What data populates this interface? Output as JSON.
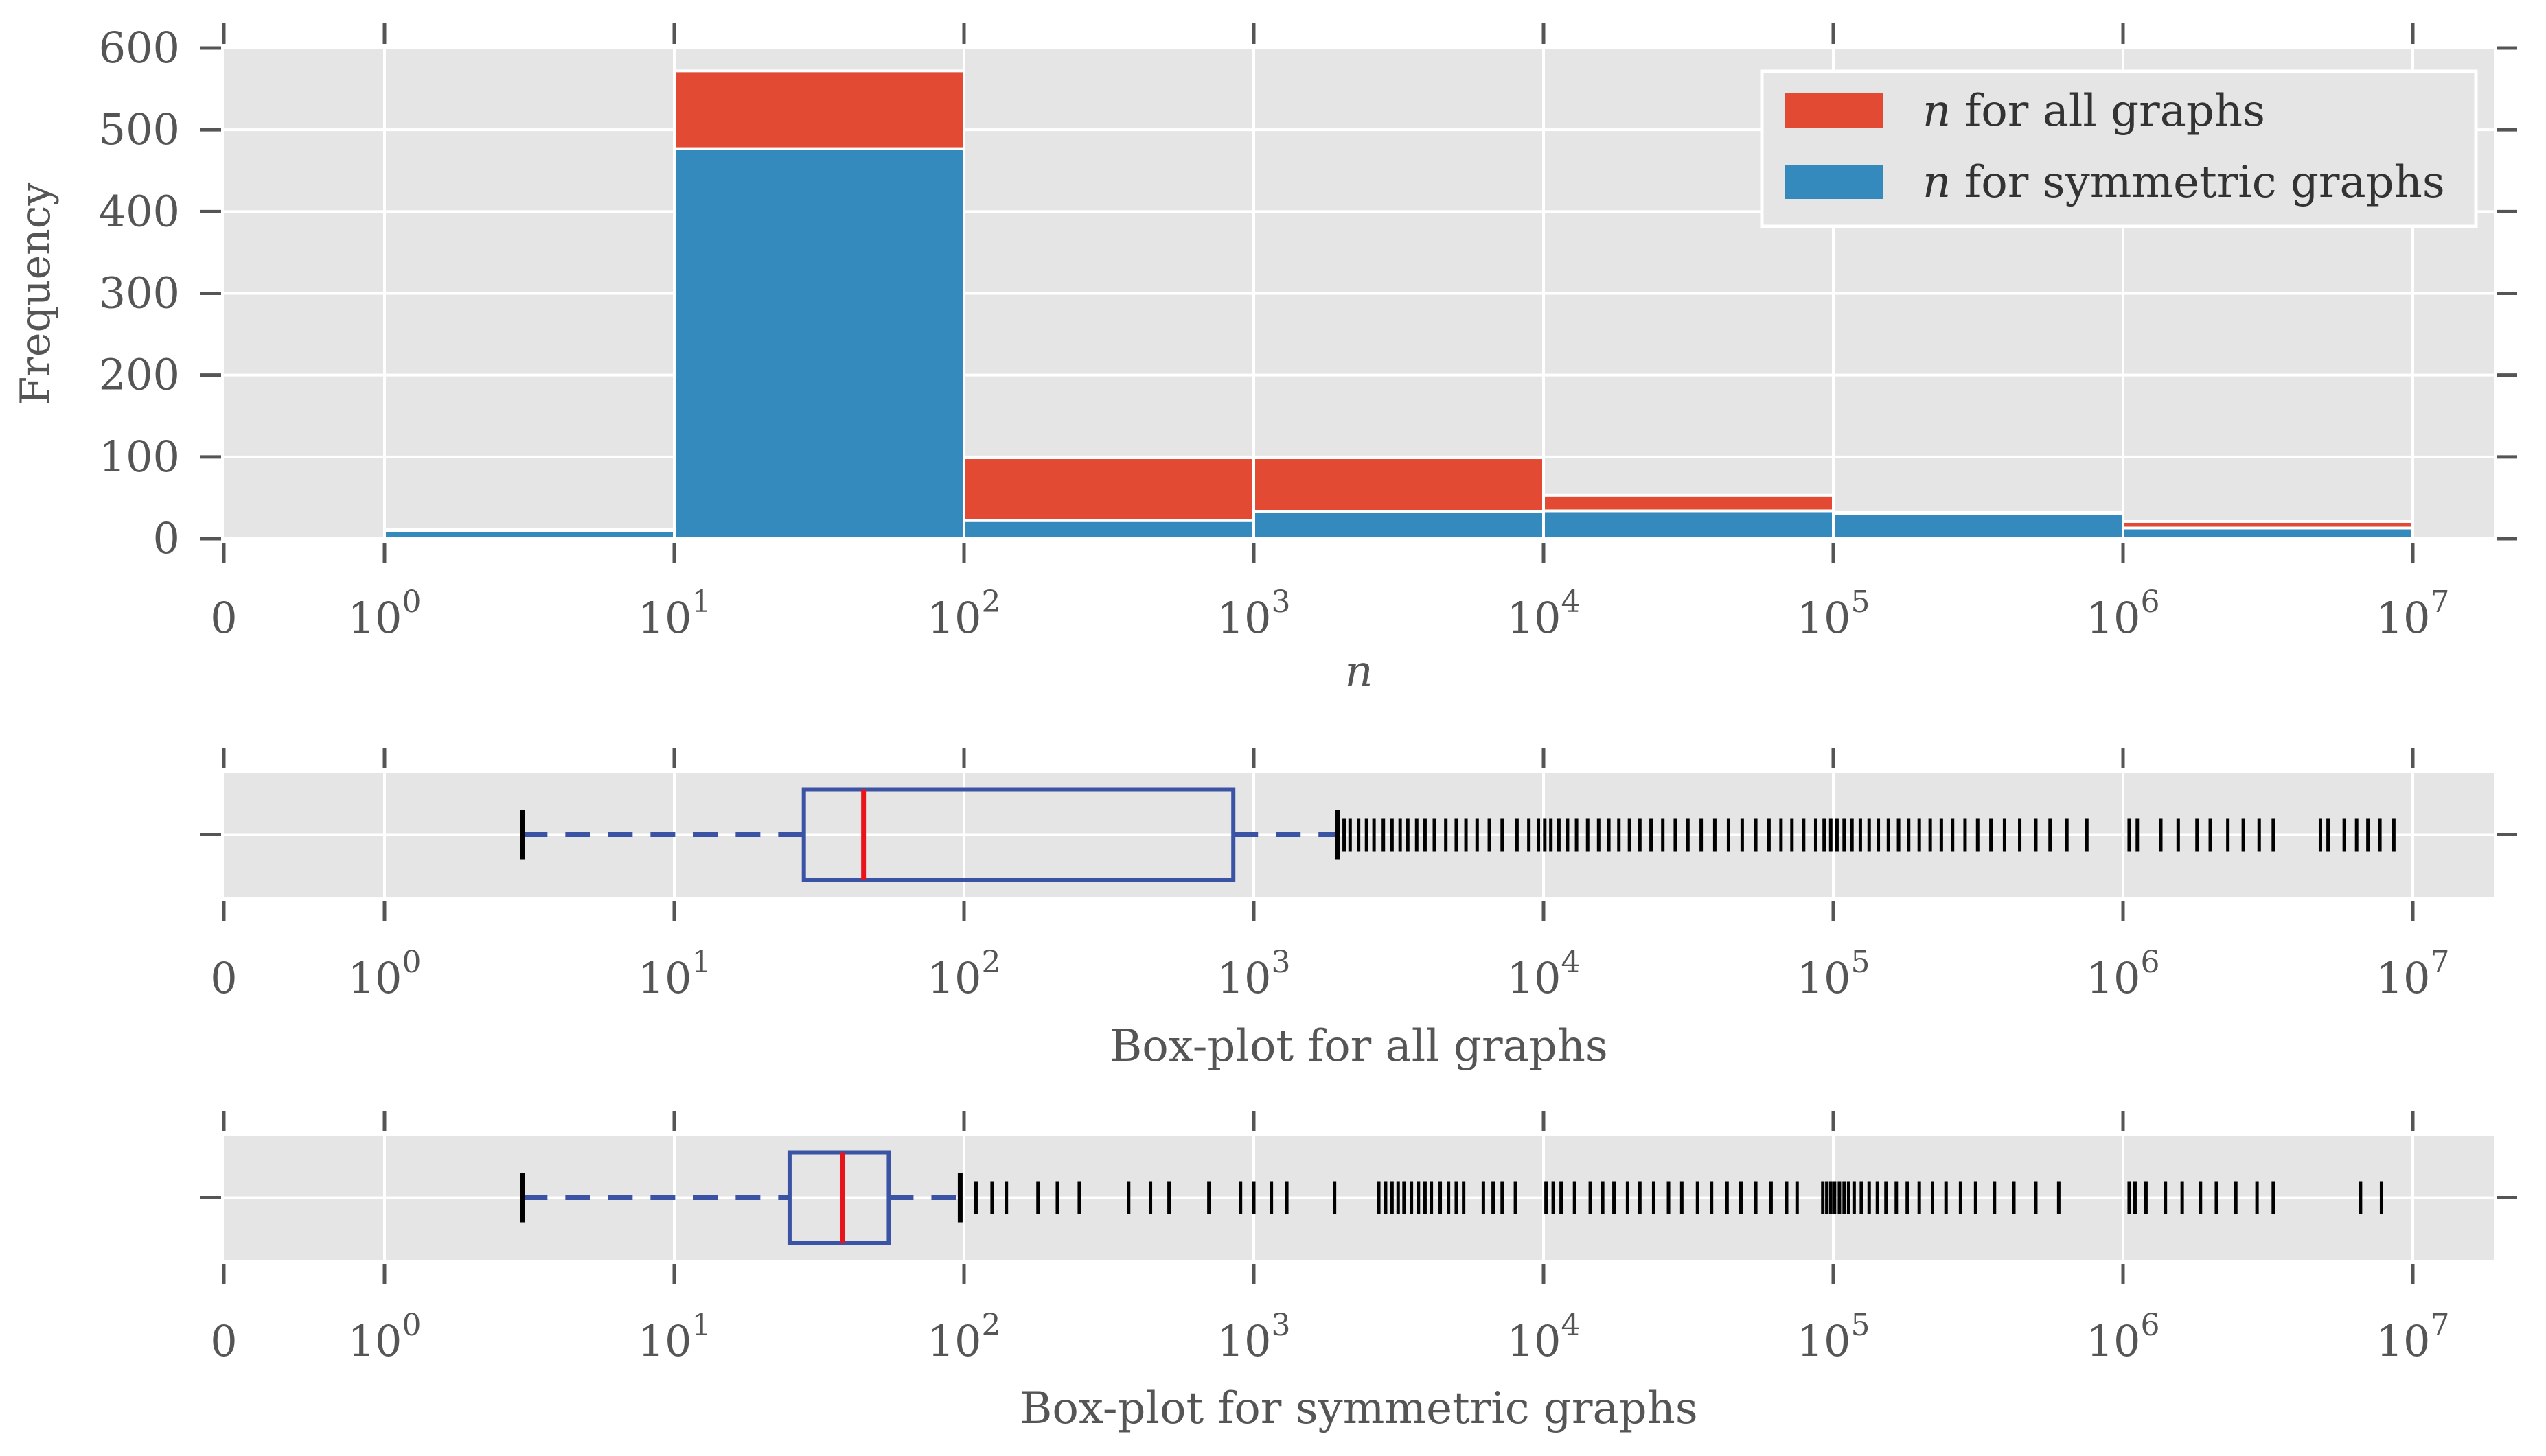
{
  "chart_data": [
    {
      "type": "bar",
      "subtype": "stacked-histogram",
      "xscale": "symlog",
      "xlabel": "n",
      "ylabel": "Frequency",
      "ylim": [
        0,
        600
      ],
      "yticks": [
        0,
        100,
        200,
        300,
        400,
        500,
        600
      ],
      "xtick_labels": [
        {
          "base": "0",
          "exp": ""
        },
        {
          "base": "10",
          "exp": "0"
        },
        {
          "base": "10",
          "exp": "1"
        },
        {
          "base": "10",
          "exp": "2"
        },
        {
          "base": "10",
          "exp": "3"
        },
        {
          "base": "10",
          "exp": "4"
        },
        {
          "base": "10",
          "exp": "5"
        },
        {
          "base": "10",
          "exp": "6"
        },
        {
          "base": "10",
          "exp": "7"
        }
      ],
      "bins": [
        [
          1,
          10
        ],
        [
          10,
          100
        ],
        [
          100,
          1000
        ],
        [
          1000,
          10000
        ],
        [
          10000,
          100000
        ],
        [
          100000,
          1000000
        ],
        [
          1000000,
          10000000
        ]
      ],
      "series": [
        {
          "name": "for all graphs",
          "legend_var": "n",
          "color": "#E24A33",
          "values": [
            11,
            572,
            99,
            99,
            53,
            32,
            21
          ]
        },
        {
          "name": "for symmetric graphs",
          "legend_var": "n",
          "color": "#348ABD",
          "values": [
            10,
            477,
            22,
            33,
            34,
            31,
            13
          ]
        }
      ],
      "legend_position": "top-right"
    },
    {
      "type": "boxplot",
      "title": "Box-plot for all graphs",
      "xscale": "symlog",
      "box": {
        "whisker_low": 3,
        "q1": 28,
        "median": 45,
        "q3": 850,
        "whisker_high": 1950
      },
      "box_color": "#3B53A4",
      "median_color": "#E8141B",
      "fliers": [
        1950,
        2050,
        2150,
        2300,
        2450,
        2600,
        2800,
        3000,
        3200,
        3400,
        3650,
        3900,
        4200,
        4600,
        5000,
        5400,
        5900,
        6500,
        7200,
        8100,
        8900,
        9600,
        10100,
        10600,
        11300,
        12100,
        13000,
        14200,
        15500,
        16800,
        18200,
        19800,
        21500,
        23500,
        25800,
        28500,
        31500,
        35000,
        39000,
        43500,
        48500,
        54000,
        60000,
        66000,
        72000,
        79000,
        87000,
        93000,
        98000,
        103000,
        109000,
        116000,
        124000,
        133000,
        143000,
        155000,
        168000,
        182000,
        198000,
        216000,
        236000,
        258000,
        285000,
        315000,
        350000,
        390000,
        440000,
        500000,
        560000,
        640000,
        750000,
        1050000,
        1120000,
        1350000,
        1550000,
        1800000,
        2000000,
        2300000,
        2600000,
        2950000,
        3300000,
        4800000,
        5100000,
        5800000,
        6400000,
        7000000,
        7700000,
        8600000
      ]
    },
    {
      "type": "boxplot",
      "title": "Box-plot for symmetric graphs",
      "xscale": "symlog",
      "box": {
        "whisker_low": 3,
        "q1": 25,
        "median": 38,
        "q3": 55,
        "whisker_high": 97
      },
      "box_color": "#3B53A4",
      "median_color": "#E8141B",
      "fliers": [
        97,
        110,
        125,
        140,
        180,
        210,
        250,
        370,
        440,
        510,
        700,
        900,
        1000,
        1150,
        1300,
        1900,
        2700,
        2850,
        3000,
        3150,
        3300,
        3500,
        3700,
        3900,
        4100,
        4400,
        4700,
        5000,
        5300,
        6200,
        6700,
        7200,
        8000,
        10200,
        10800,
        11500,
        12800,
        14500,
        16000,
        17500,
        19500,
        21500,
        24000,
        27000,
        30000,
        34000,
        38000,
        43000,
        48000,
        54000,
        61000,
        69000,
        75000,
        92000,
        95000,
        98000,
        101000,
        105000,
        109000,
        113000,
        118000,
        125000,
        133000,
        142000,
        152000,
        165000,
        180000,
        198000,
        220000,
        245000,
        275000,
        310000,
        360000,
        420000,
        500000,
        600000,
        1050000,
        1100000,
        1200000,
        1400000,
        1600000,
        1850000,
        2100000,
        2450000,
        2900000,
        3300000,
        6600000,
        7800000
      ]
    }
  ]
}
